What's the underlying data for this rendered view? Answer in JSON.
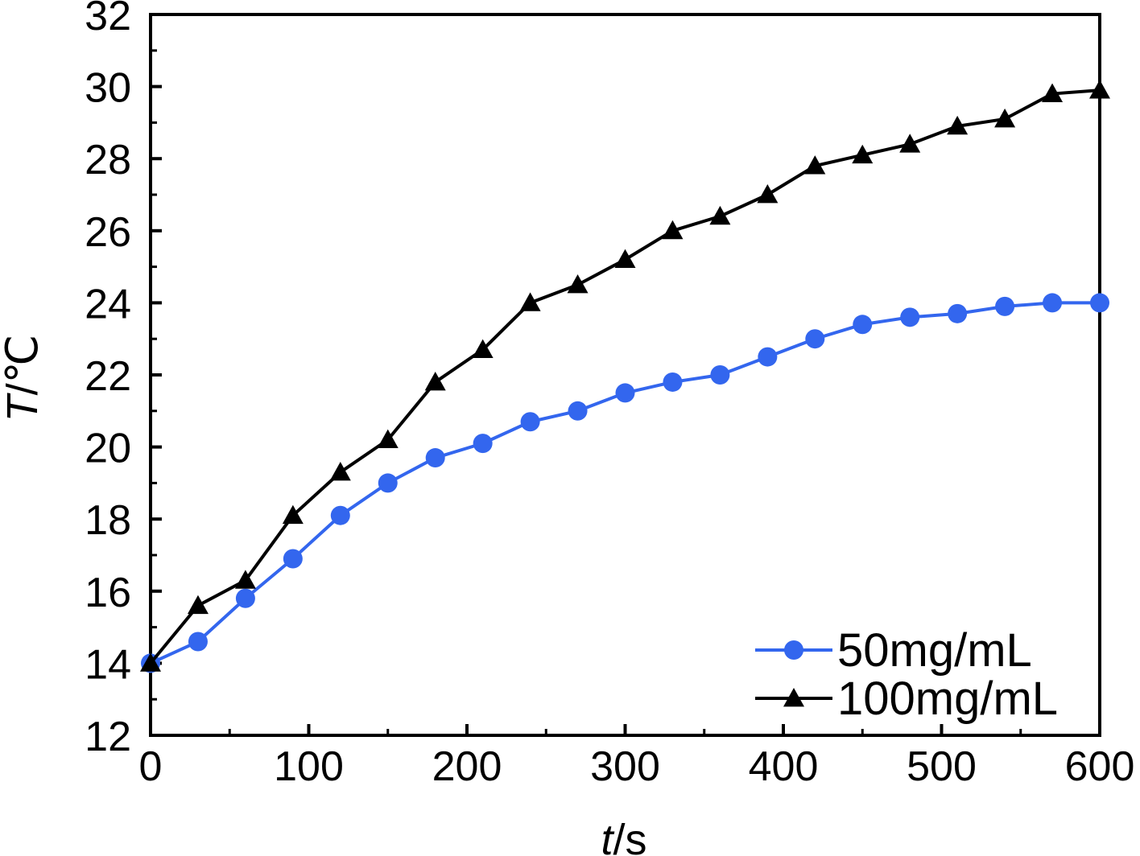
{
  "chart_data": {
    "type": "line",
    "xlabel_var": "t",
    "xlabel_unit": "/s",
    "ylabel_var": "T",
    "ylabel_unit": "/℃",
    "xlim": [
      0,
      600
    ],
    "ylim": [
      12,
      32
    ],
    "x_ticks": [
      "0",
      "100",
      "200",
      "300",
      "400",
      "500",
      "600"
    ],
    "y_ticks": [
      "12",
      "14",
      "16",
      "18",
      "20",
      "22",
      "24",
      "26",
      "28",
      "30",
      "32"
    ],
    "grid": false,
    "legend_position": "bottom-right",
    "x": [
      0,
      30,
      60,
      90,
      120,
      150,
      180,
      210,
      240,
      270,
      300,
      330,
      360,
      390,
      420,
      450,
      480,
      510,
      540,
      570,
      600
    ],
    "series": [
      {
        "name": "50mg/mL",
        "marker": "circle",
        "color": "#3366ee",
        "values": [
          14.0,
          14.6,
          15.8,
          16.9,
          18.1,
          19.0,
          19.7,
          20.1,
          20.7,
          21.0,
          21.5,
          21.8,
          22.0,
          22.5,
          23.0,
          23.4,
          23.6,
          23.7,
          23.9,
          24.0,
          24.0
        ]
      },
      {
        "name": "100mg/mL",
        "marker": "triangle",
        "color": "#000000",
        "values": [
          14.0,
          15.6,
          16.3,
          18.1,
          19.3,
          20.2,
          21.8,
          22.7,
          24.0,
          24.5,
          25.2,
          26.0,
          26.4,
          27.0,
          27.8,
          28.1,
          28.4,
          28.9,
          29.1,
          29.8,
          29.9
        ]
      }
    ]
  }
}
